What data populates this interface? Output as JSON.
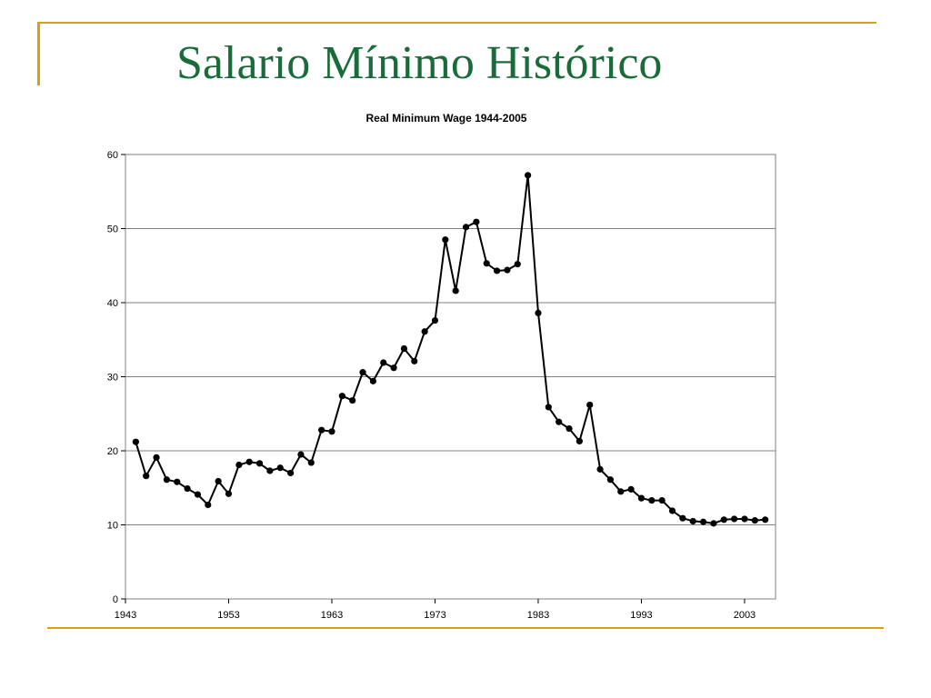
{
  "slide": {
    "title": "Salario Mínimo Histórico"
  },
  "colors": {
    "title": "#1a6b3a",
    "rule": "#d4a017",
    "series": "#000000",
    "grid": "#808080"
  },
  "chart_data": {
    "type": "line",
    "title": "Real Minimum Wage 1944-2005",
    "xlabel": "",
    "ylabel": "",
    "xlim": [
      1943,
      2006
    ],
    "ylim": [
      0,
      60
    ],
    "xticks": [
      1943,
      1953,
      1963,
      1973,
      1983,
      1993,
      2003
    ],
    "yticks": [
      0,
      10,
      20,
      30,
      40,
      50,
      60
    ],
    "grid": true,
    "legend": "none",
    "markers": true,
    "x": [
      1944,
      1945,
      1946,
      1947,
      1948,
      1949,
      1950,
      1951,
      1952,
      1953,
      1954,
      1955,
      1956,
      1957,
      1958,
      1959,
      1960,
      1961,
      1962,
      1963,
      1964,
      1965,
      1966,
      1967,
      1968,
      1969,
      1970,
      1971,
      1972,
      1973,
      1974,
      1975,
      1976,
      1977,
      1978,
      1979,
      1980,
      1981,
      1982,
      1983,
      1984,
      1985,
      1986,
      1987,
      1988,
      1989,
      1990,
      1991,
      1992,
      1993,
      1994,
      1995,
      1996,
      1997,
      1998,
      1999,
      2000,
      2001,
      2002,
      2003,
      2004,
      2005
    ],
    "series": [
      {
        "values": [
          21.2,
          16.6,
          19.1,
          16.1,
          15.8,
          14.9,
          14.1,
          12.7,
          15.9,
          14.2,
          18.1,
          18.5,
          18.3,
          17.3,
          17.7,
          17.0,
          19.5,
          18.4,
          22.8,
          22.6,
          27.4,
          26.8,
          30.6,
          29.4,
          31.9,
          31.2,
          33.8,
          32.1,
          36.1,
          37.6,
          48.5,
          41.6,
          50.2,
          50.9,
          45.3,
          44.3,
          44.4,
          45.2,
          57.2,
          38.6,
          25.9,
          23.9,
          23.0,
          21.3,
          26.2,
          17.5,
          16.1,
          14.5,
          14.8,
          13.6,
          13.3,
          13.3,
          11.9,
          10.9,
          10.5,
          10.4,
          10.2,
          10.7,
          10.8,
          10.8,
          10.6,
          10.7
        ]
      }
    ]
  }
}
